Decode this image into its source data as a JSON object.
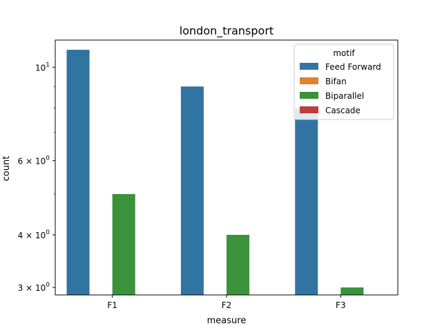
{
  "chart_data": {
    "type": "bar",
    "title": "london_transport",
    "xlabel": "measure",
    "ylabel": "count",
    "yscale": "log",
    "ylim": [
      2.88,
      11.6
    ],
    "categories": [
      "F1",
      "F2",
      "F3"
    ],
    "yticks": [
      {
        "value": 10,
        "label": "10",
        "sup": "1"
      },
      {
        "value": 6,
        "label": "6 × 10",
        "sup": "0"
      },
      {
        "value": 4,
        "label": "4 × 10",
        "sup": "0"
      },
      {
        "value": 3,
        "label": "3 × 10",
        "sup": "0"
      }
    ],
    "legend": {
      "title": "motif",
      "position": "upper right"
    },
    "series": [
      {
        "name": "Feed Forward",
        "color": "#3274a1",
        "values": [
          11,
          9,
          8
        ]
      },
      {
        "name": "Bifan",
        "color": "#e1812c",
        "values": [
          0,
          0,
          0
        ]
      },
      {
        "name": "Biparallel",
        "color": "#3a923a",
        "values": [
          5,
          4,
          3
        ]
      },
      {
        "name": "Cascade",
        "color": "#c03d3e",
        "values": [
          0,
          0,
          0
        ]
      }
    ]
  }
}
